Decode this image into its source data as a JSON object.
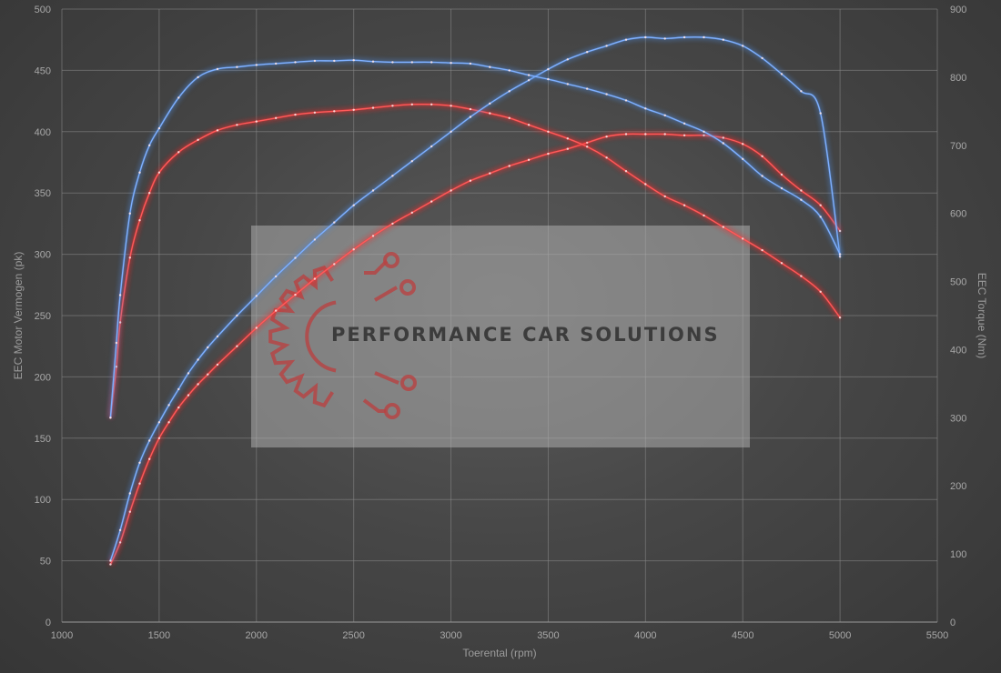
{
  "chart_data": {
    "type": "line",
    "xlabel": "Toerental (rpm)",
    "ylabel": "EEC Motor Vermogen (pk)",
    "y2label": "EEC Torque (Nm)",
    "xlim": [
      1000,
      5500
    ],
    "ylim": [
      0,
      500
    ],
    "y2lim": [
      0,
      900
    ],
    "x_ticks": [
      1000,
      1500,
      2000,
      2500,
      3000,
      3500,
      4000,
      4500,
      5000,
      5500
    ],
    "y_ticks": [
      0,
      50,
      100,
      150,
      200,
      250,
      300,
      350,
      400,
      450,
      500
    ],
    "y2_ticks": [
      0,
      100,
      200,
      300,
      400,
      500,
      600,
      700,
      800,
      900
    ],
    "grid": true,
    "series": [
      {
        "axis": "left",
        "color": "#ff2a2a",
        "x": [
          1250,
          1300,
          1350,
          1400,
          1450,
          1500,
          1550,
          1600,
          1650,
          1700,
          1750,
          1800,
          1900,
          2000,
          2100,
          2200,
          2300,
          2400,
          2500,
          2600,
          2700,
          2800,
          2900,
          3000,
          3100,
          3200,
          3300,
          3400,
          3500,
          3600,
          3700,
          3800,
          3900,
          4000,
          4100,
          4200,
          4300,
          4400,
          4500,
          4600,
          4700,
          4800,
          4900,
          5000
        ],
        "y": [
          47,
          65,
          90,
          113,
          133,
          150,
          163,
          175,
          185,
          194,
          202,
          210,
          225,
          240,
          254,
          267,
          280,
          292,
          304,
          315,
          325,
          334,
          343,
          352,
          360,
          366,
          372,
          377,
          382,
          386,
          391,
          396,
          398,
          398,
          398,
          397,
          397,
          395,
          390,
          380,
          365,
          352,
          340,
          319
        ]
      },
      {
        "axis": "right",
        "color": "#ff2a2a",
        "x": [
          1250,
          1280,
          1300,
          1350,
          1400,
          1450,
          1500,
          1600,
          1700,
          1800,
          1900,
          2000,
          2100,
          2200,
          2300,
          2400,
          2500,
          2600,
          2700,
          2800,
          2900,
          3000,
          3100,
          3200,
          3300,
          3400,
          3500,
          3600,
          3700,
          3800,
          3900,
          4000,
          4100,
          4200,
          4300,
          4400,
          4500,
          4600,
          4700,
          4800,
          4900,
          5000
        ],
        "y": [
          300,
          375,
          440,
          535,
          590,
          630,
          660,
          690,
          708,
          722,
          730,
          735,
          740,
          745,
          748,
          750,
          752,
          755,
          758,
          760,
          760,
          758,
          753,
          747,
          740,
          730,
          720,
          710,
          698,
          682,
          662,
          643,
          625,
          612,
          597,
          580,
          563,
          546,
          527,
          508,
          485,
          447
        ]
      },
      {
        "axis": "left",
        "color": "#4f88d8",
        "x": [
          1250,
          1300,
          1350,
          1400,
          1450,
          1500,
          1550,
          1600,
          1650,
          1700,
          1750,
          1800,
          1900,
          2000,
          2100,
          2200,
          2300,
          2400,
          2500,
          2600,
          2700,
          2800,
          2900,
          3000,
          3100,
          3200,
          3300,
          3400,
          3500,
          3600,
          3700,
          3800,
          3900,
          4000,
          4100,
          4200,
          4300,
          4400,
          4500,
          4600,
          4700,
          4800,
          4900,
          5000
        ],
        "y": [
          50,
          75,
          105,
          130,
          148,
          163,
          177,
          190,
          203,
          214,
          224,
          233,
          250,
          266,
          282,
          297,
          312,
          326,
          340,
          352,
          364,
          376,
          388,
          400,
          412,
          423,
          433,
          442,
          451,
          459,
          465,
          470,
          475,
          477,
          476,
          477,
          477,
          475,
          470,
          460,
          447,
          433,
          415,
          298
        ]
      },
      {
        "axis": "right",
        "color": "#4f88d8",
        "x": [
          1250,
          1280,
          1300,
          1350,
          1400,
          1450,
          1500,
          1600,
          1700,
          1800,
          1900,
          2000,
          2100,
          2200,
          2300,
          2400,
          2500,
          2600,
          2700,
          2800,
          2900,
          3000,
          3100,
          3200,
          3300,
          3400,
          3500,
          3600,
          3700,
          3800,
          3900,
          4000,
          4100,
          4200,
          4300,
          4400,
          4500,
          4600,
          4700,
          4800,
          4900,
          5000
        ],
        "y": [
          300,
          410,
          480,
          600,
          660,
          700,
          725,
          770,
          800,
          812,
          815,
          818,
          820,
          822,
          824,
          824,
          825,
          823,
          822,
          822,
          822,
          821,
          820,
          815,
          810,
          803,
          797,
          790,
          783,
          775,
          766,
          754,
          744,
          732,
          720,
          703,
          680,
          655,
          637,
          620,
          595,
          540
        ]
      }
    ]
  },
  "watermark": {
    "text": "PERFORMANCE CAR SOLUTIONS",
    "logo": "gear-circuit-logo",
    "logo_color": "#b84242"
  }
}
